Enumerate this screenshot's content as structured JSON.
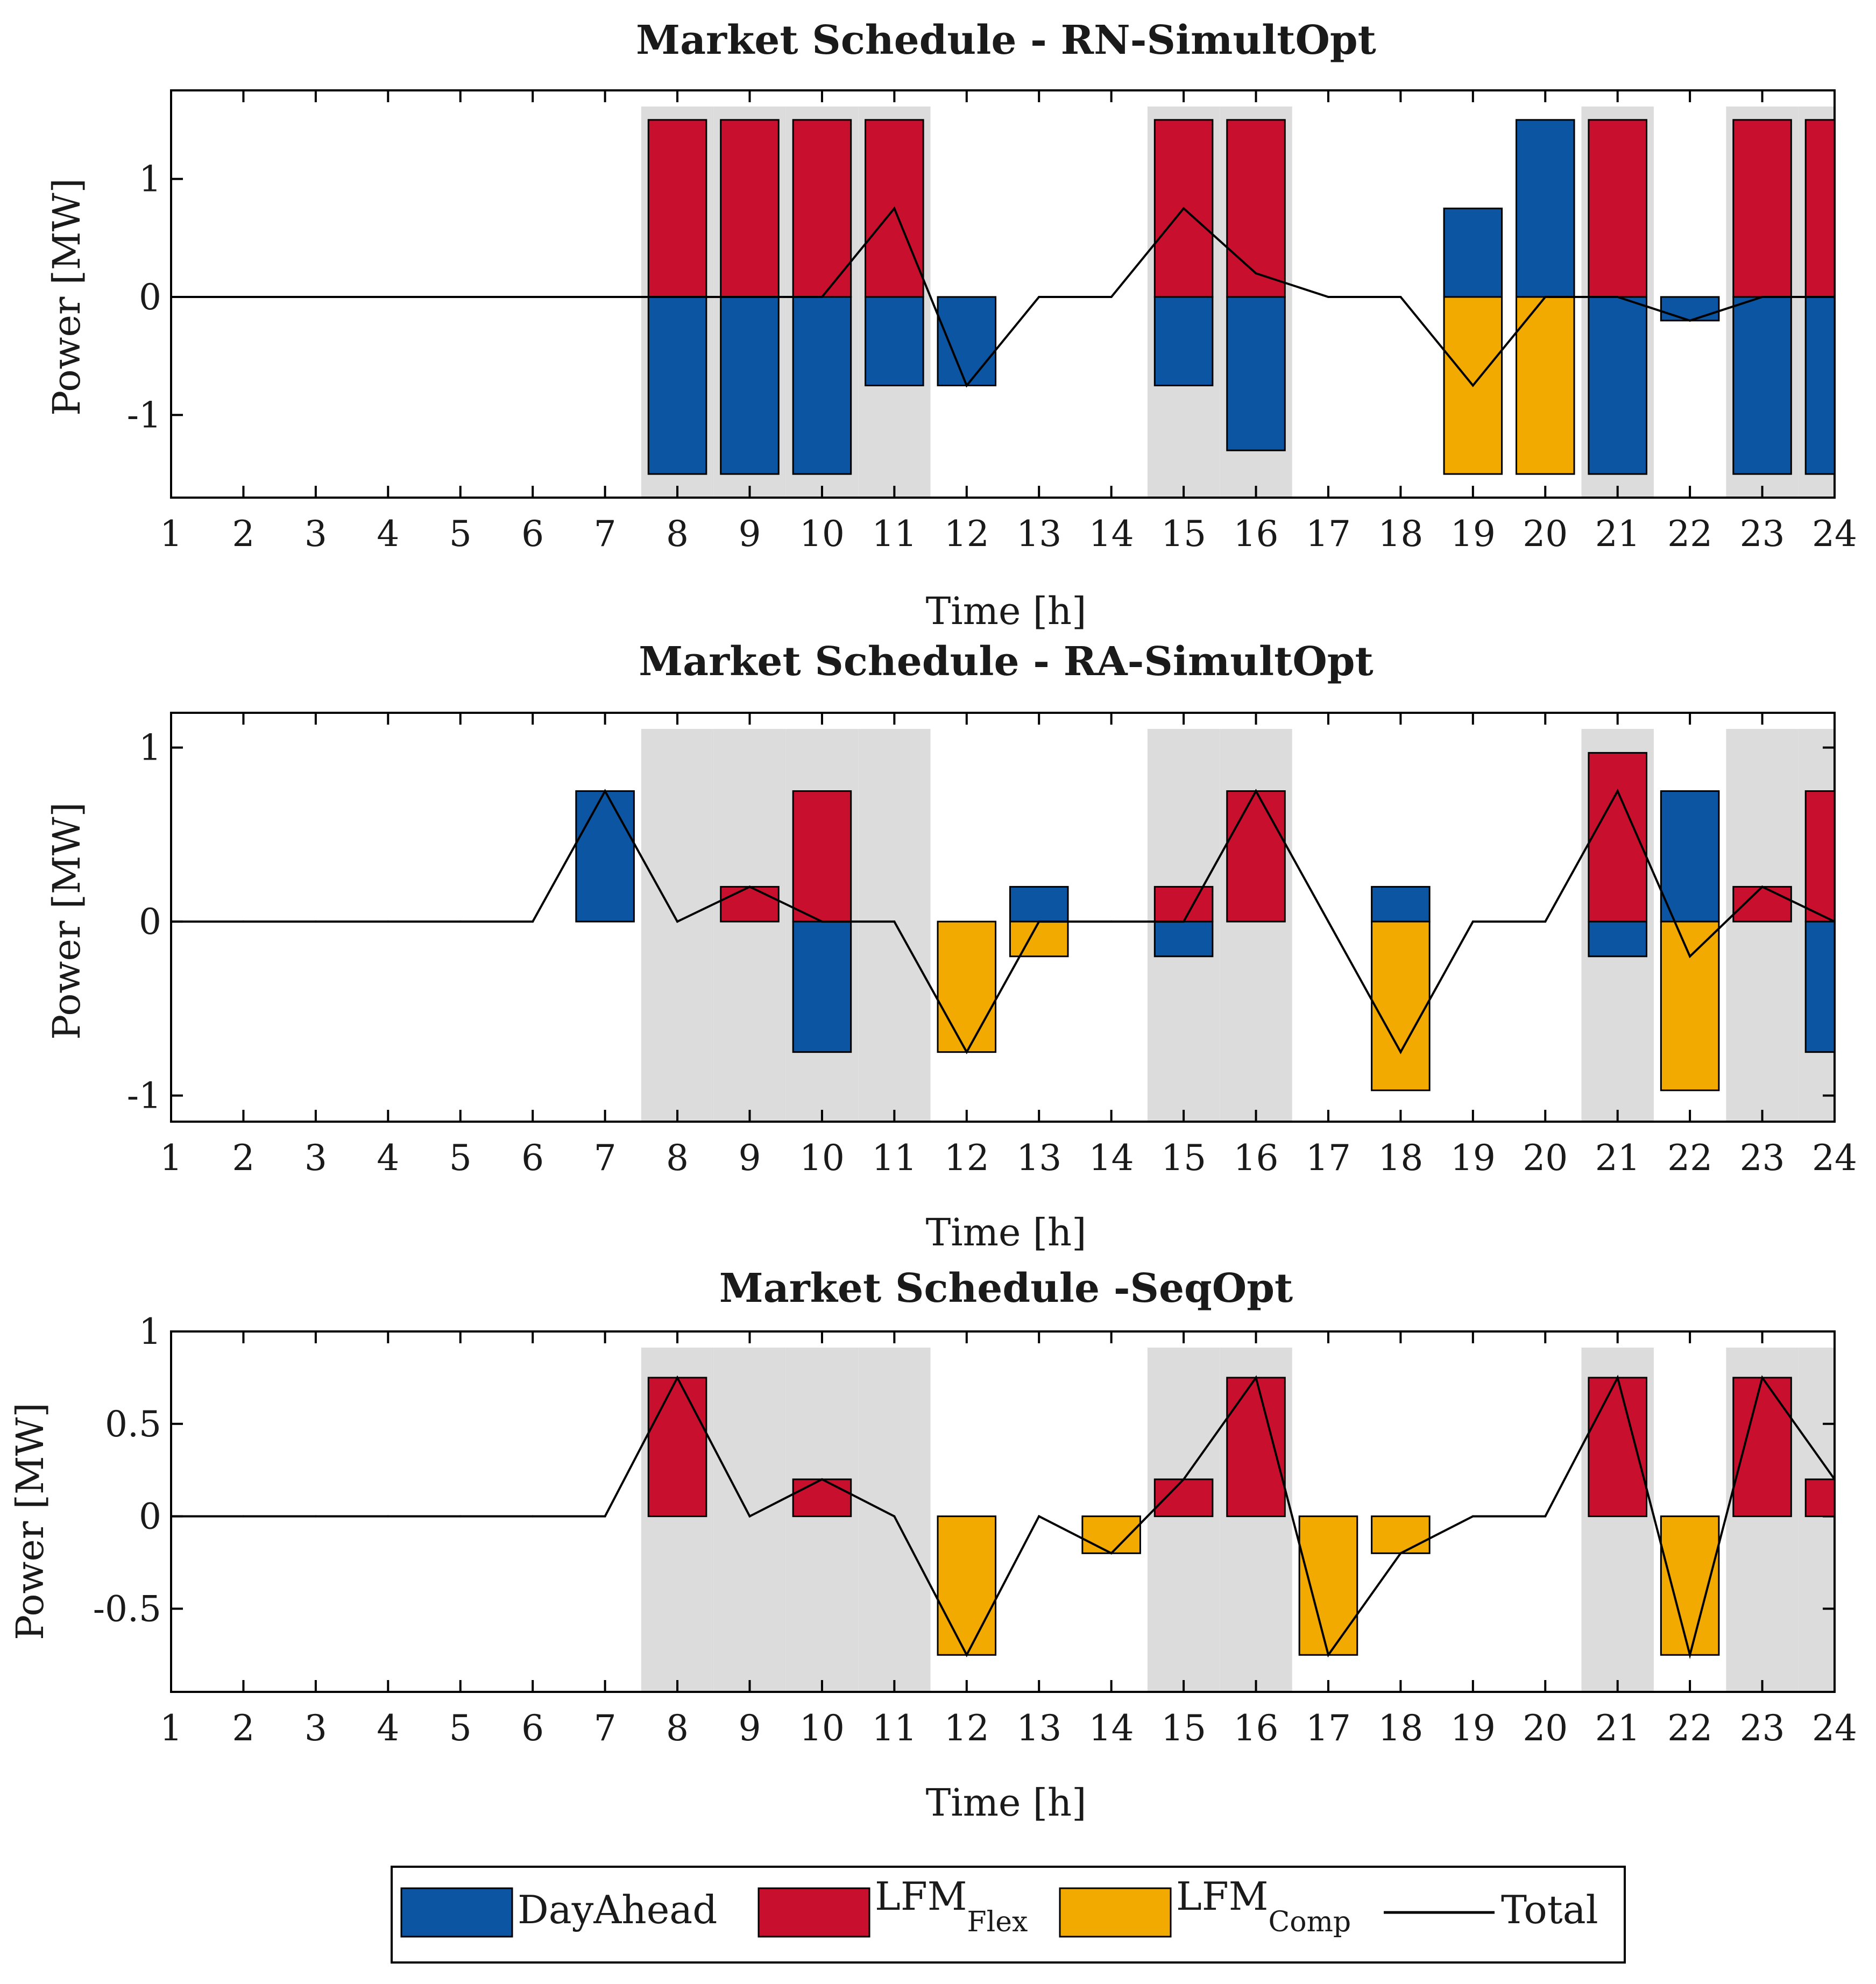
{
  "colors": {
    "DayAhead": "#0B55A3",
    "LFM_Flex": "#C8102E",
    "LFM_Comp": "#F2A900",
    "Total": "#000000",
    "shade": "#DCDCDC"
  },
  "legend": {
    "items": [
      {
        "key": "DayAhead",
        "label": "DayAhead",
        "sub": ""
      },
      {
        "key": "LFM_Flex",
        "label": "LFM",
        "sub": "Flex"
      },
      {
        "key": "LFM_Comp",
        "label": "LFM",
        "sub": "Comp"
      },
      {
        "key": "Total",
        "label": "Total",
        "sub": ""
      }
    ]
  },
  "chart_data": [
    {
      "type": "bar",
      "title": "Market Schedule - RN-SimultOpt",
      "xlabel": "Time [h]",
      "ylabel": "Power [MW]",
      "x": [
        1,
        2,
        3,
        4,
        5,
        6,
        7,
        8,
        9,
        10,
        11,
        12,
        13,
        14,
        15,
        16,
        17,
        18,
        19,
        20,
        21,
        22,
        23,
        24
      ],
      "xlim": [
        1,
        24
      ],
      "ylim": [
        -1.7,
        1.75
      ],
      "yticks": [
        -1,
        0,
        1
      ],
      "ytick_labels": [
        "-1",
        "0",
        "1"
      ],
      "shaded_hours": [
        8,
        9,
        10,
        11,
        15,
        16,
        21,
        23,
        24
      ],
      "series": [
        {
          "name": "DayAhead",
          "values": [
            0,
            0,
            0,
            0,
            0,
            0,
            0,
            -1.5,
            -1.5,
            -1.5,
            -0.75,
            -0.75,
            0,
            0,
            -0.75,
            -1.3,
            0,
            0,
            0.75,
            1.5,
            -1.5,
            -0.2,
            -1.5,
            -1.5
          ]
        },
        {
          "name": "LFM_Flex",
          "values": [
            0,
            0,
            0,
            0,
            0,
            0,
            0,
            1.5,
            1.5,
            1.5,
            1.5,
            0,
            0,
            0,
            1.5,
            1.5,
            0,
            0,
            0,
            0,
            1.5,
            0,
            1.5,
            1.5
          ]
        },
        {
          "name": "LFM_Comp",
          "values": [
            0,
            0,
            0,
            0,
            0,
            0,
            0,
            0,
            0,
            0,
            0,
            0,
            0,
            0,
            0,
            0,
            0,
            0,
            -1.5,
            -1.5,
            0,
            0,
            0,
            0
          ]
        },
        {
          "name": "Total",
          "values": [
            0,
            0,
            0,
            0,
            0,
            0,
            0,
            0,
            0,
            0,
            0.75,
            -0.75,
            0,
            0,
            0.75,
            0.2,
            0,
            0,
            -0.75,
            0,
            0,
            -0.2,
            0,
            0
          ]
        }
      ]
    },
    {
      "type": "bar",
      "title": "Market Schedule - RA-SimultOpt",
      "xlabel": "Time [h]",
      "ylabel": "Power [MW]",
      "x": [
        1,
        2,
        3,
        4,
        5,
        6,
        7,
        8,
        9,
        10,
        11,
        12,
        13,
        14,
        15,
        16,
        17,
        18,
        19,
        20,
        21,
        22,
        23,
        24
      ],
      "xlim": [
        1,
        24
      ],
      "ylim": [
        -1.15,
        1.2
      ],
      "yticks": [
        -1,
        0,
        1
      ],
      "ytick_labels": [
        "-1",
        "0",
        "1"
      ],
      "shaded_hours": [
        8,
        9,
        10,
        11,
        15,
        16,
        21,
        23,
        24
      ],
      "series": [
        {
          "name": "DayAhead",
          "values": [
            0,
            0,
            0,
            0,
            0,
            0,
            0.75,
            0,
            0,
            -0.75,
            0,
            0,
            0.2,
            0,
            -0.2,
            0,
            0,
            0.2,
            0,
            0,
            -0.2,
            0.75,
            0,
            -0.75
          ]
        },
        {
          "name": "LFM_Flex",
          "values": [
            0,
            0,
            0,
            0,
            0,
            0,
            0,
            0,
            0.2,
            0.75,
            0,
            0,
            0,
            0,
            0.2,
            0.75,
            0,
            0,
            0,
            0,
            0.97,
            0,
            0.2,
            0.75
          ]
        },
        {
          "name": "LFM_Comp",
          "values": [
            0,
            0,
            0,
            0,
            0,
            0,
            0,
            0,
            0,
            0,
            0,
            -0.75,
            -0.2,
            0,
            0,
            0,
            0,
            -0.97,
            0,
            0,
            0,
            -0.97,
            0,
            0
          ]
        },
        {
          "name": "Total",
          "values": [
            0,
            0,
            0,
            0,
            0,
            0,
            0.75,
            0,
            0.2,
            0,
            0,
            -0.75,
            0,
            0,
            0,
            0.75,
            0,
            -0.75,
            0,
            0,
            0.75,
            -0.2,
            0.2,
            0
          ]
        }
      ]
    },
    {
      "type": "bar",
      "title": "Market Schedule -SeqOpt",
      "xlabel": "Time [h]",
      "ylabel": "Power [MW]",
      "x": [
        1,
        2,
        3,
        4,
        5,
        6,
        7,
        8,
        9,
        10,
        11,
        12,
        13,
        14,
        15,
        16,
        17,
        18,
        19,
        20,
        21,
        22,
        23,
        24
      ],
      "xlim": [
        1,
        24
      ],
      "ylim": [
        -0.95,
        1.0
      ],
      "yticks": [
        -0.5,
        0,
        0.5,
        1
      ],
      "ytick_labels": [
        "-0.5",
        "0",
        "0.5",
        "1"
      ],
      "shaded_hours": [
        8,
        9,
        10,
        11,
        15,
        16,
        21,
        23,
        24
      ],
      "series": [
        {
          "name": "DayAhead",
          "values": [
            0,
            0,
            0,
            0,
            0,
            0,
            0,
            0,
            0,
            0,
            0,
            0,
            0,
            0,
            0,
            0,
            0,
            0,
            0,
            0,
            0,
            0,
            0,
            0
          ]
        },
        {
          "name": "LFM_Flex",
          "values": [
            0,
            0,
            0,
            0,
            0,
            0,
            0,
            0.75,
            0,
            0.2,
            0,
            0,
            0,
            0,
            0.2,
            0.75,
            0,
            0,
            0,
            0,
            0.75,
            0,
            0.75,
            0.2
          ]
        },
        {
          "name": "LFM_Comp",
          "values": [
            0,
            0,
            0,
            0,
            0,
            0,
            0,
            0,
            0,
            0,
            0,
            -0.75,
            0,
            -0.2,
            0,
            0,
            -0.75,
            -0.2,
            0,
            0,
            0,
            -0.75,
            0,
            0
          ]
        },
        {
          "name": "Total",
          "values": [
            0,
            0,
            0,
            0,
            0,
            0,
            0,
            0.75,
            0,
            0.2,
            0,
            -0.75,
            0,
            -0.2,
            0.2,
            0.75,
            -0.75,
            -0.2,
            0,
            0,
            0.75,
            -0.75,
            0.75,
            0.2
          ]
        }
      ]
    }
  ]
}
